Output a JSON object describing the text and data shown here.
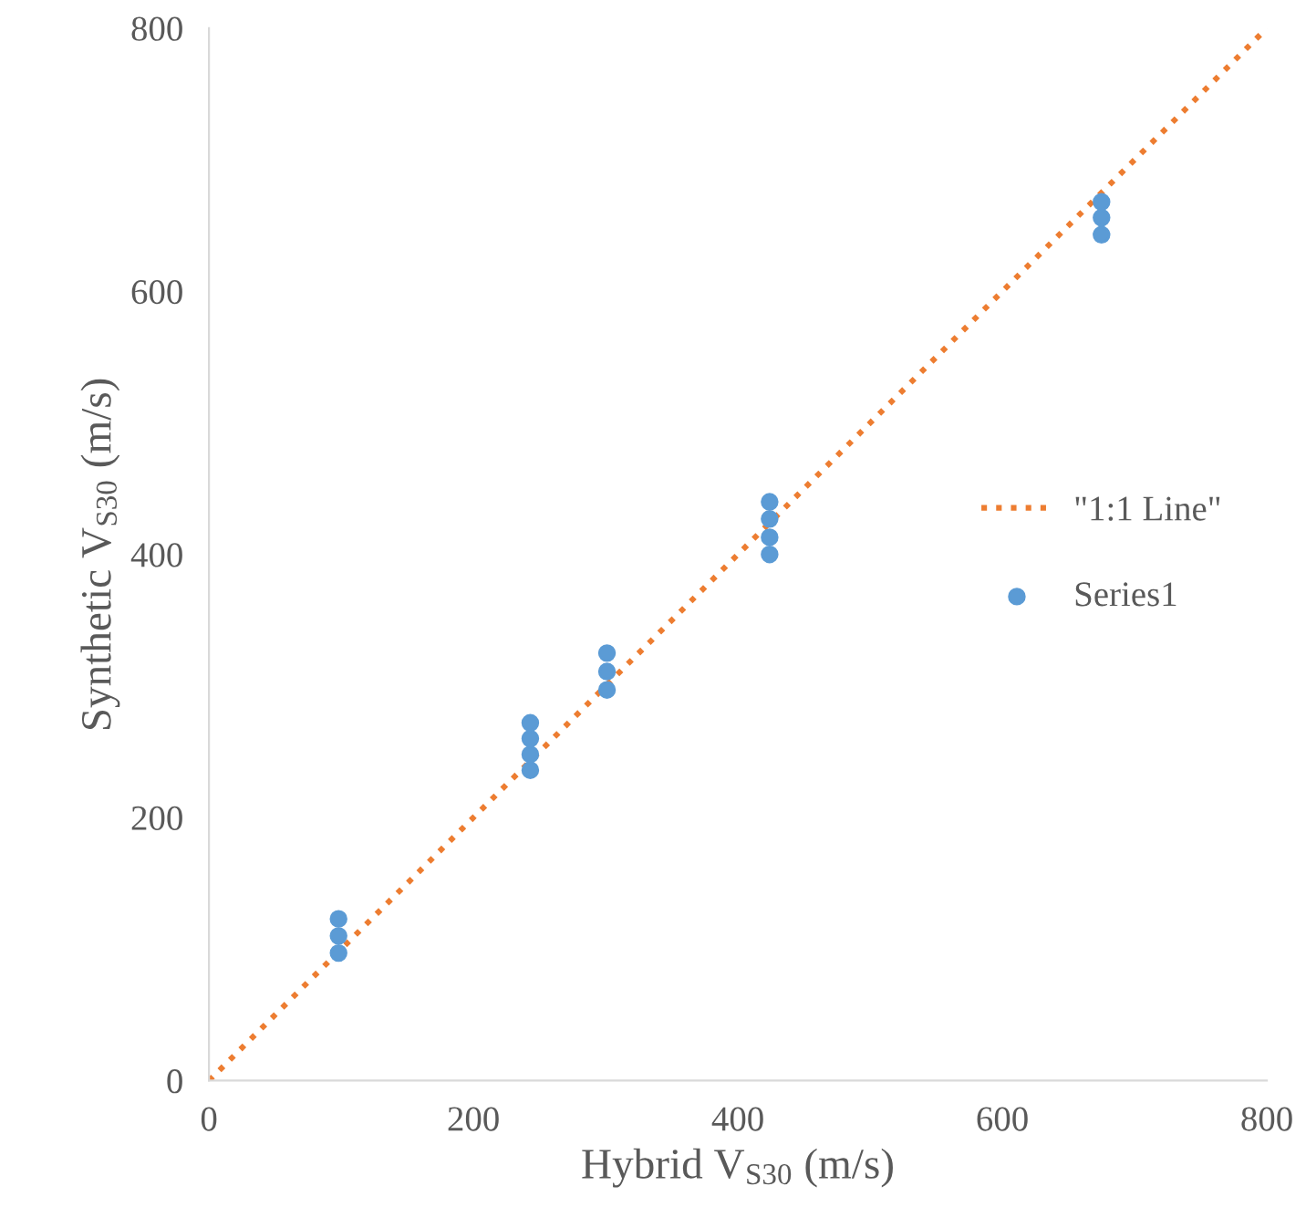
{
  "chart_data": {
    "type": "scatter",
    "xlabel": "Hybrid V$_{S30}$ (m/s)",
    "ylabel": "Synthetic V$_{S30}$ (m/s)",
    "xlim": [
      0,
      800
    ],
    "ylim": [
      0,
      800
    ],
    "xticks": [
      0,
      200,
      400,
      600,
      800
    ],
    "yticks": [
      0,
      200,
      400,
      600,
      800
    ],
    "grid": false,
    "legend": "right",
    "series": [
      {
        "name": "\"1:1 Line\"",
        "type": "line",
        "color": "#ed7d31",
        "line_style": "dotted",
        "marker": "none",
        "x": [
          0,
          800
        ],
        "values": [
          0,
          800
        ]
      },
      {
        "name": "Series1",
        "color": "#5b9bd5",
        "marker": "circle",
        "x": [
          98,
          98,
          98,
          243,
          243,
          243,
          243,
          301,
          301,
          301,
          424,
          424,
          424,
          424,
          675,
          675,
          675
        ],
        "values": [
          97,
          110,
          123,
          236,
          248,
          260,
          272,
          297,
          311,
          325,
          400,
          413,
          427,
          440,
          643,
          656,
          668
        ]
      }
    ]
  }
}
